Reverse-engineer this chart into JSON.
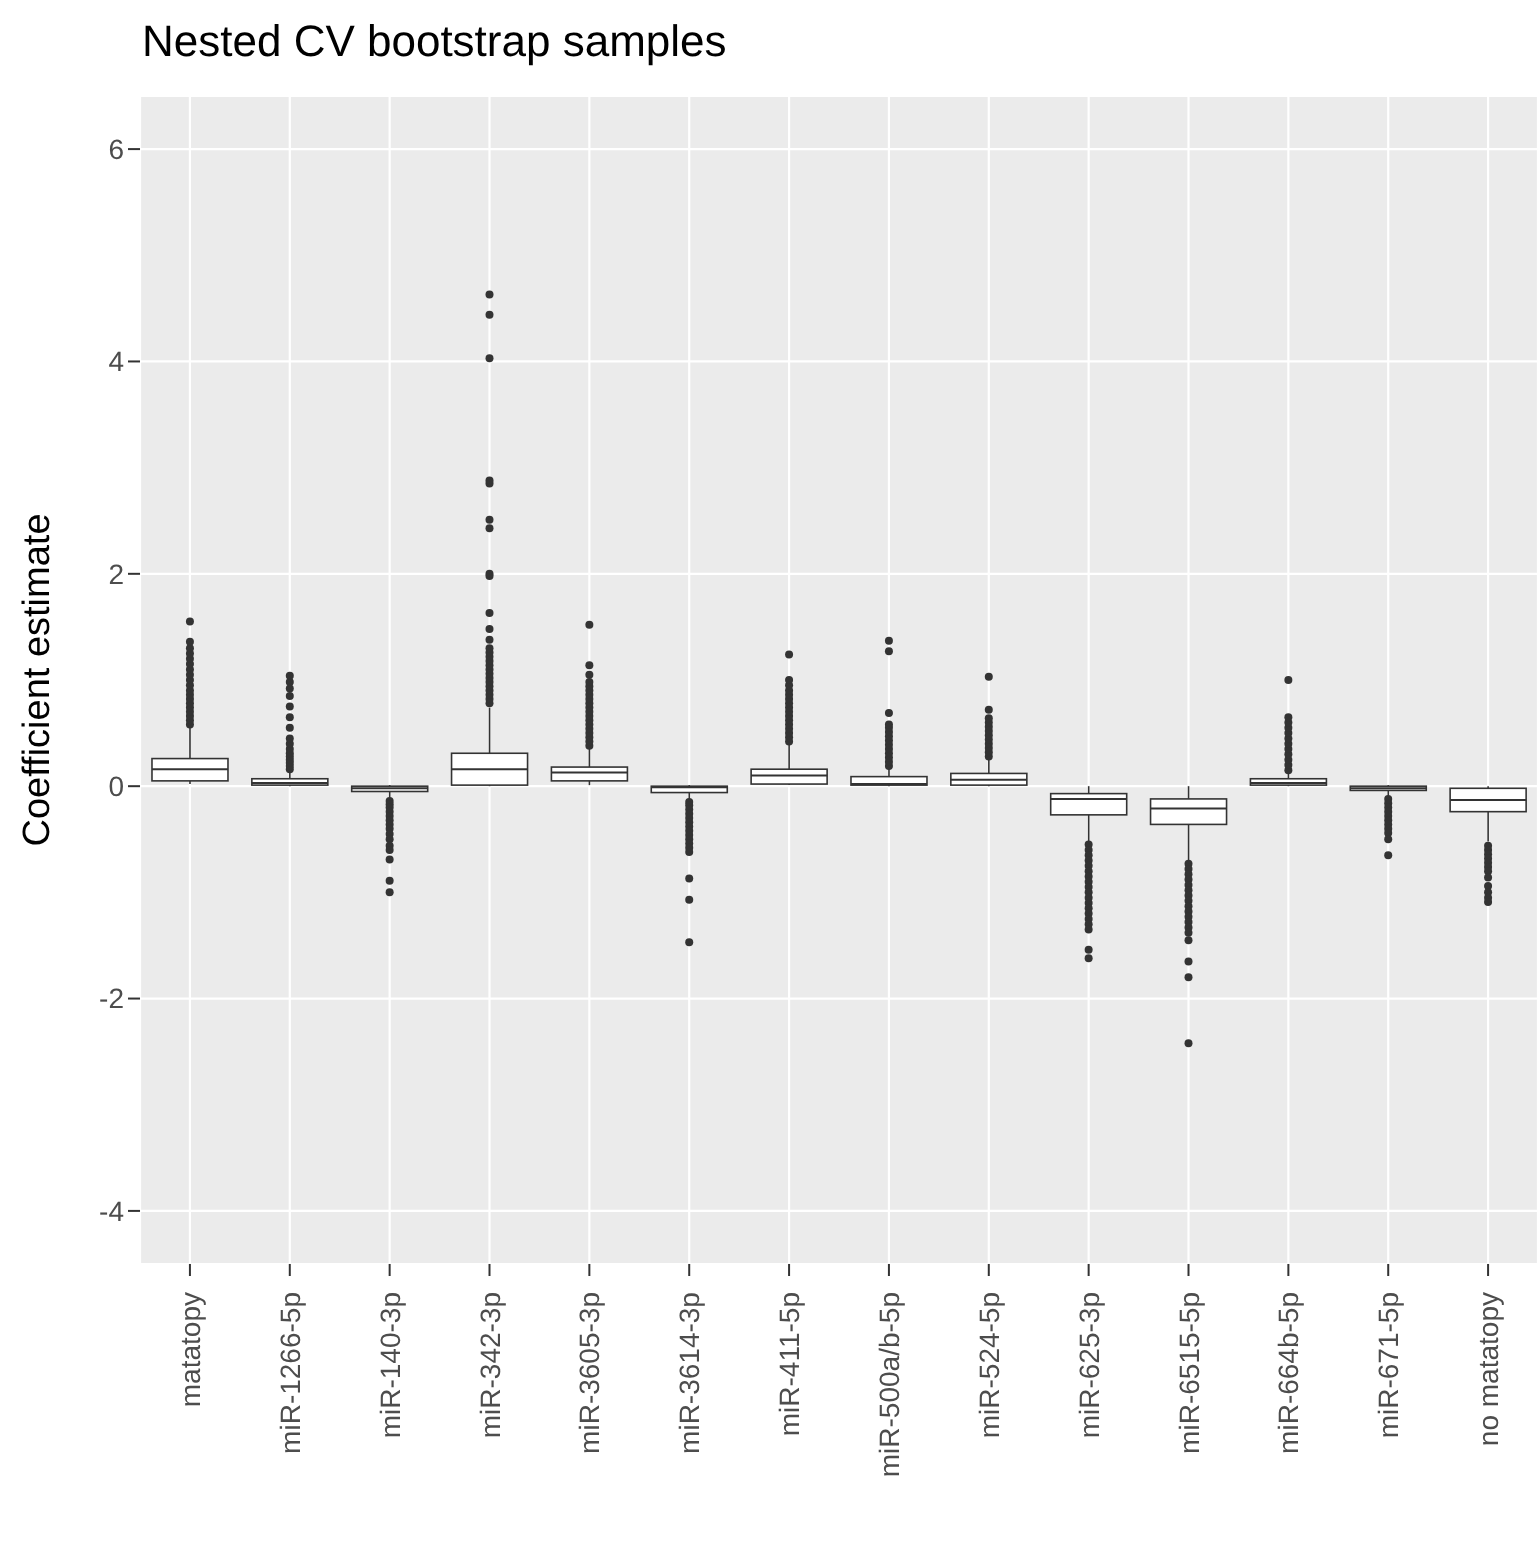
{
  "chart_data": {
    "type": "box",
    "title": "Nested CV bootstrap samples",
    "ylabel": "Coefficient estimate",
    "categories": [
      "matatopy",
      "miR-1266-5p",
      "miR-140-3p",
      "miR-342-3p",
      "miR-3605-3p",
      "miR-3614-3p",
      "miR-411-5p",
      "miR-500a/b-5p",
      "miR-524-5p",
      "miR-625-3p",
      "miR-6515-5p",
      "miR-664b-5p",
      "miR-671-5p",
      "no matatopy"
    ],
    "color": "#333333",
    "ylim": [
      -4.5,
      6.5
    ],
    "yticks": [
      -4,
      -2,
      0,
      2,
      4,
      6
    ],
    "grid": true,
    "boxes": [
      {
        "low": 0.02,
        "q1": 0.05,
        "median": 0.16,
        "q3": 0.26,
        "high": 0.55,
        "outliers": [
          0.58,
          0.62,
          0.66,
          0.7,
          0.74,
          0.78,
          0.82,
          0.86,
          0.9,
          0.95,
          1.0,
          1.05,
          1.1,
          1.15,
          1.2,
          1.25,
          1.3,
          1.36,
          1.55
        ]
      },
      {
        "low": 0.0,
        "q1": 0.01,
        "median": 0.03,
        "q3": 0.07,
        "high": 0.14,
        "outliers": [
          0.16,
          0.19,
          0.22,
          0.25,
          0.28,
          0.31,
          0.35,
          0.4,
          0.45,
          0.55,
          0.65,
          0.75,
          0.85,
          0.92,
          0.98,
          1.04
        ]
      },
      {
        "low": -0.11,
        "q1": -0.05,
        "median": -0.02,
        "q3": 0.0,
        "high": 0.01,
        "outliers": [
          -0.14,
          -0.17,
          -0.2,
          -0.24,
          -0.28,
          -0.32,
          -0.36,
          -0.4,
          -0.45,
          -0.5,
          -0.56,
          -0.6,
          -0.69,
          -0.89,
          -1.0
        ]
      },
      {
        "low": 0.0,
        "q1": 0.01,
        "median": 0.16,
        "q3": 0.31,
        "high": 0.74,
        "outliers": [
          0.78,
          0.82,
          0.86,
          0.9,
          0.94,
          0.98,
          1.02,
          1.06,
          1.1,
          1.14,
          1.18,
          1.22,
          1.26,
          1.3,
          1.38,
          1.48,
          1.63,
          1.98,
          2.0,
          2.43,
          2.51,
          2.85,
          2.88,
          4.03,
          4.44,
          4.63
        ]
      },
      {
        "low": 0.01,
        "q1": 0.05,
        "median": 0.13,
        "q3": 0.18,
        "high": 0.35,
        "outliers": [
          0.38,
          0.42,
          0.46,
          0.5,
          0.54,
          0.58,
          0.62,
          0.66,
          0.7,
          0.74,
          0.78,
          0.82,
          0.86,
          0.9,
          0.94,
          0.98,
          1.05,
          1.14,
          1.52
        ]
      },
      {
        "low": -0.12,
        "q1": -0.06,
        "median": -0.01,
        "q3": 0.0,
        "high": 0.01,
        "outliers": [
          -0.15,
          -0.18,
          -0.22,
          -0.26,
          -0.3,
          -0.34,
          -0.38,
          -0.42,
          -0.46,
          -0.5,
          -0.54,
          -0.58,
          -0.62,
          -0.87,
          -1.07,
          -1.47
        ]
      },
      {
        "low": 0.01,
        "q1": 0.02,
        "median": 0.1,
        "q3": 0.16,
        "high": 0.39,
        "outliers": [
          0.42,
          0.46,
          0.5,
          0.54,
          0.58,
          0.62,
          0.66,
          0.7,
          0.74,
          0.78,
          0.82,
          0.86,
          0.9,
          0.95,
          1.0,
          1.24
        ]
      },
      {
        "low": 0.0,
        "q1": 0.01,
        "median": 0.02,
        "q3": 0.09,
        "high": 0.17,
        "outliers": [
          0.19,
          0.23,
          0.27,
          0.31,
          0.35,
          0.39,
          0.43,
          0.47,
          0.51,
          0.55,
          0.58,
          0.69,
          1.27,
          1.37
        ]
      },
      {
        "low": 0.0,
        "q1": 0.01,
        "median": 0.06,
        "q3": 0.12,
        "high": 0.25,
        "outliers": [
          0.28,
          0.32,
          0.36,
          0.4,
          0.44,
          0.48,
          0.52,
          0.56,
          0.6,
          0.64,
          0.72,
          1.03
        ]
      },
      {
        "low": -0.52,
        "q1": -0.27,
        "median": -0.12,
        "q3": -0.07,
        "high": 0.0,
        "outliers": [
          -0.55,
          -0.6,
          -0.65,
          -0.7,
          -0.75,
          -0.8,
          -0.85,
          -0.9,
          -0.95,
          -1.0,
          -1.05,
          -1.1,
          -1.15,
          -1.2,
          -1.25,
          -1.3,
          -1.35,
          -1.54,
          -1.62
        ]
      },
      {
        "low": -0.7,
        "q1": -0.36,
        "median": -0.21,
        "q3": -0.12,
        "high": 0.0,
        "outliers": [
          -0.73,
          -0.78,
          -0.83,
          -0.88,
          -0.93,
          -0.98,
          -1.03,
          -1.08,
          -1.13,
          -1.18,
          -1.23,
          -1.28,
          -1.33,
          -1.38,
          -1.45,
          -1.65,
          -1.8,
          -2.42
        ]
      },
      {
        "low": 0.0,
        "q1": 0.01,
        "median": 0.03,
        "q3": 0.07,
        "high": 0.13,
        "outliers": [
          0.15,
          0.2,
          0.25,
          0.3,
          0.35,
          0.4,
          0.45,
          0.5,
          0.55,
          0.6,
          0.65,
          1.0
        ]
      },
      {
        "low": -0.1,
        "q1": -0.04,
        "median": -0.02,
        "q3": 0.0,
        "high": 0.01,
        "outliers": [
          -0.12,
          -0.16,
          -0.2,
          -0.24,
          -0.28,
          -0.32,
          -0.36,
          -0.4,
          -0.44,
          -0.5,
          -0.65
        ]
      },
      {
        "low": -0.52,
        "q1": -0.24,
        "median": -0.13,
        "q3": -0.02,
        "high": 0.0,
        "outliers": [
          -0.56,
          -0.6,
          -0.64,
          -0.68,
          -0.72,
          -0.76,
          -0.8,
          -0.86,
          -0.94,
          -1.0,
          -1.05,
          -1.09
        ]
      }
    ]
  }
}
